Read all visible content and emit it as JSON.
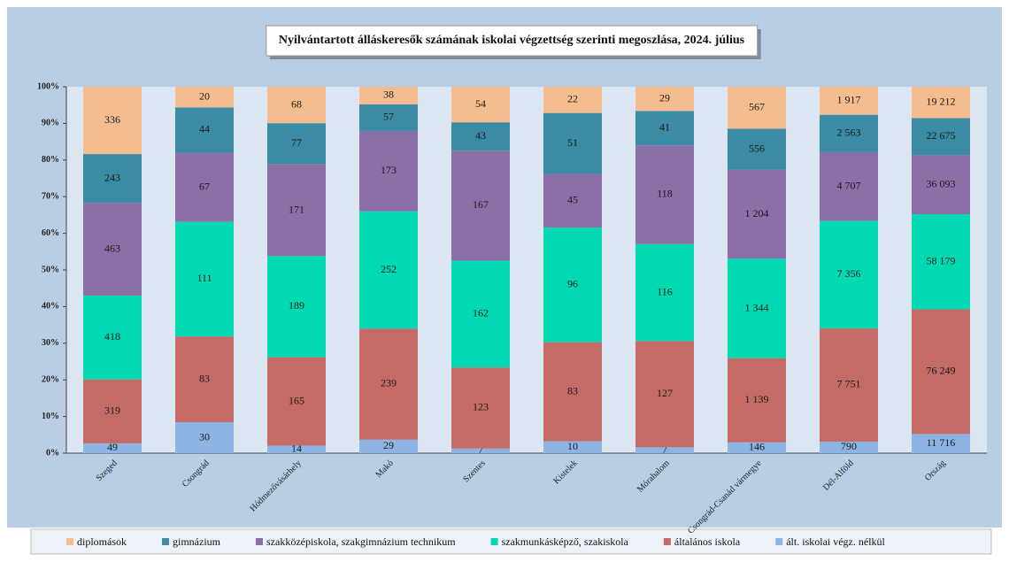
{
  "chart_data": {
    "type": "bar",
    "stacked": "percent",
    "title": "Nyilvántartott  álláskeresők számának iskolai végzettség szerinti megoszlása, 2024. július",
    "categories": [
      "Szeged",
      "Csongrád",
      "Hódmezővásárhely",
      "Makó",
      "Szentes",
      "Kistelek",
      "Mórahalom",
      "Csongrád-Csanád vármegye",
      "Dél-Alföld",
      "Ország"
    ],
    "series": [
      {
        "name": "ált. iskolai végz. nélkül",
        "color": "#8eb4e3",
        "values": [
          49,
          30,
          14,
          29,
          7,
          10,
          7,
          146,
          790,
          11716
        ],
        "value_labels": [
          "49",
          "30",
          "14",
          "29",
          "7",
          "10",
          "7",
          "146",
          "790",
          "11 716"
        ]
      },
      {
        "name": "általános iskola",
        "color": "#c46b67",
        "values": [
          319,
          83,
          165,
          239,
          123,
          83,
          127,
          1139,
          7751,
          76249
        ],
        "value_labels": [
          "319",
          "83",
          "165",
          "239",
          "123",
          "83",
          "127",
          "1 139",
          "7 751",
          "76 249"
        ]
      },
      {
        "name": "szakmunkásképző, szakiskola",
        "color": "#00d9b1",
        "values": [
          418,
          111,
          189,
          252,
          162,
          96,
          116,
          1344,
          7356,
          58179
        ],
        "value_labels": [
          "418",
          "111",
          "189",
          "252",
          "162",
          "96",
          "116",
          "1 344",
          "7 356",
          "58 179"
        ]
      },
      {
        "name": "szakközépiskola, szakgimnázium technikum",
        "color": "#8a6fa8",
        "values": [
          463,
          67,
          171,
          173,
          167,
          45,
          118,
          1204,
          4707,
          36093
        ],
        "value_labels": [
          "463",
          "67",
          "171",
          "173",
          "167",
          "45",
          "118",
          "1 204",
          "4 707",
          "36 093"
        ]
      },
      {
        "name": "gimnázium",
        "color": "#3a8ba3",
        "values": [
          243,
          44,
          77,
          57,
          43,
          51,
          41,
          556,
          2563,
          22675
        ],
        "value_labels": [
          "243",
          "44",
          "77",
          "57",
          "43",
          "51",
          "41",
          "556",
          "2 563",
          "22 675"
        ]
      },
      {
        "name": "diplomások",
        "color": "#f3bd90",
        "values": [
          336,
          20,
          68,
          38,
          54,
          22,
          29,
          567,
          1917,
          19212
        ],
        "value_labels": [
          "336",
          "20",
          "68",
          "38",
          "54",
          "22",
          "29",
          "567",
          "1 917",
          "19 212"
        ]
      }
    ],
    "ylim": [
      0,
      100
    ],
    "yticks": [
      {
        "value": 0,
        "label": "0%"
      },
      {
        "value": 10,
        "label": "10%"
      },
      {
        "value": 20,
        "label": "20%"
      },
      {
        "value": 30,
        "label": "30%"
      },
      {
        "value": 40,
        "label": "40%"
      },
      {
        "value": 50,
        "label": "50%"
      },
      {
        "value": 60,
        "label": "60%"
      },
      {
        "value": 70,
        "label": "70%"
      },
      {
        "value": 80,
        "label": "80%"
      },
      {
        "value": 90,
        "label": "90%"
      },
      {
        "value": 100,
        "label": "100%"
      }
    ],
    "grid": false,
    "legend": "bottom"
  }
}
